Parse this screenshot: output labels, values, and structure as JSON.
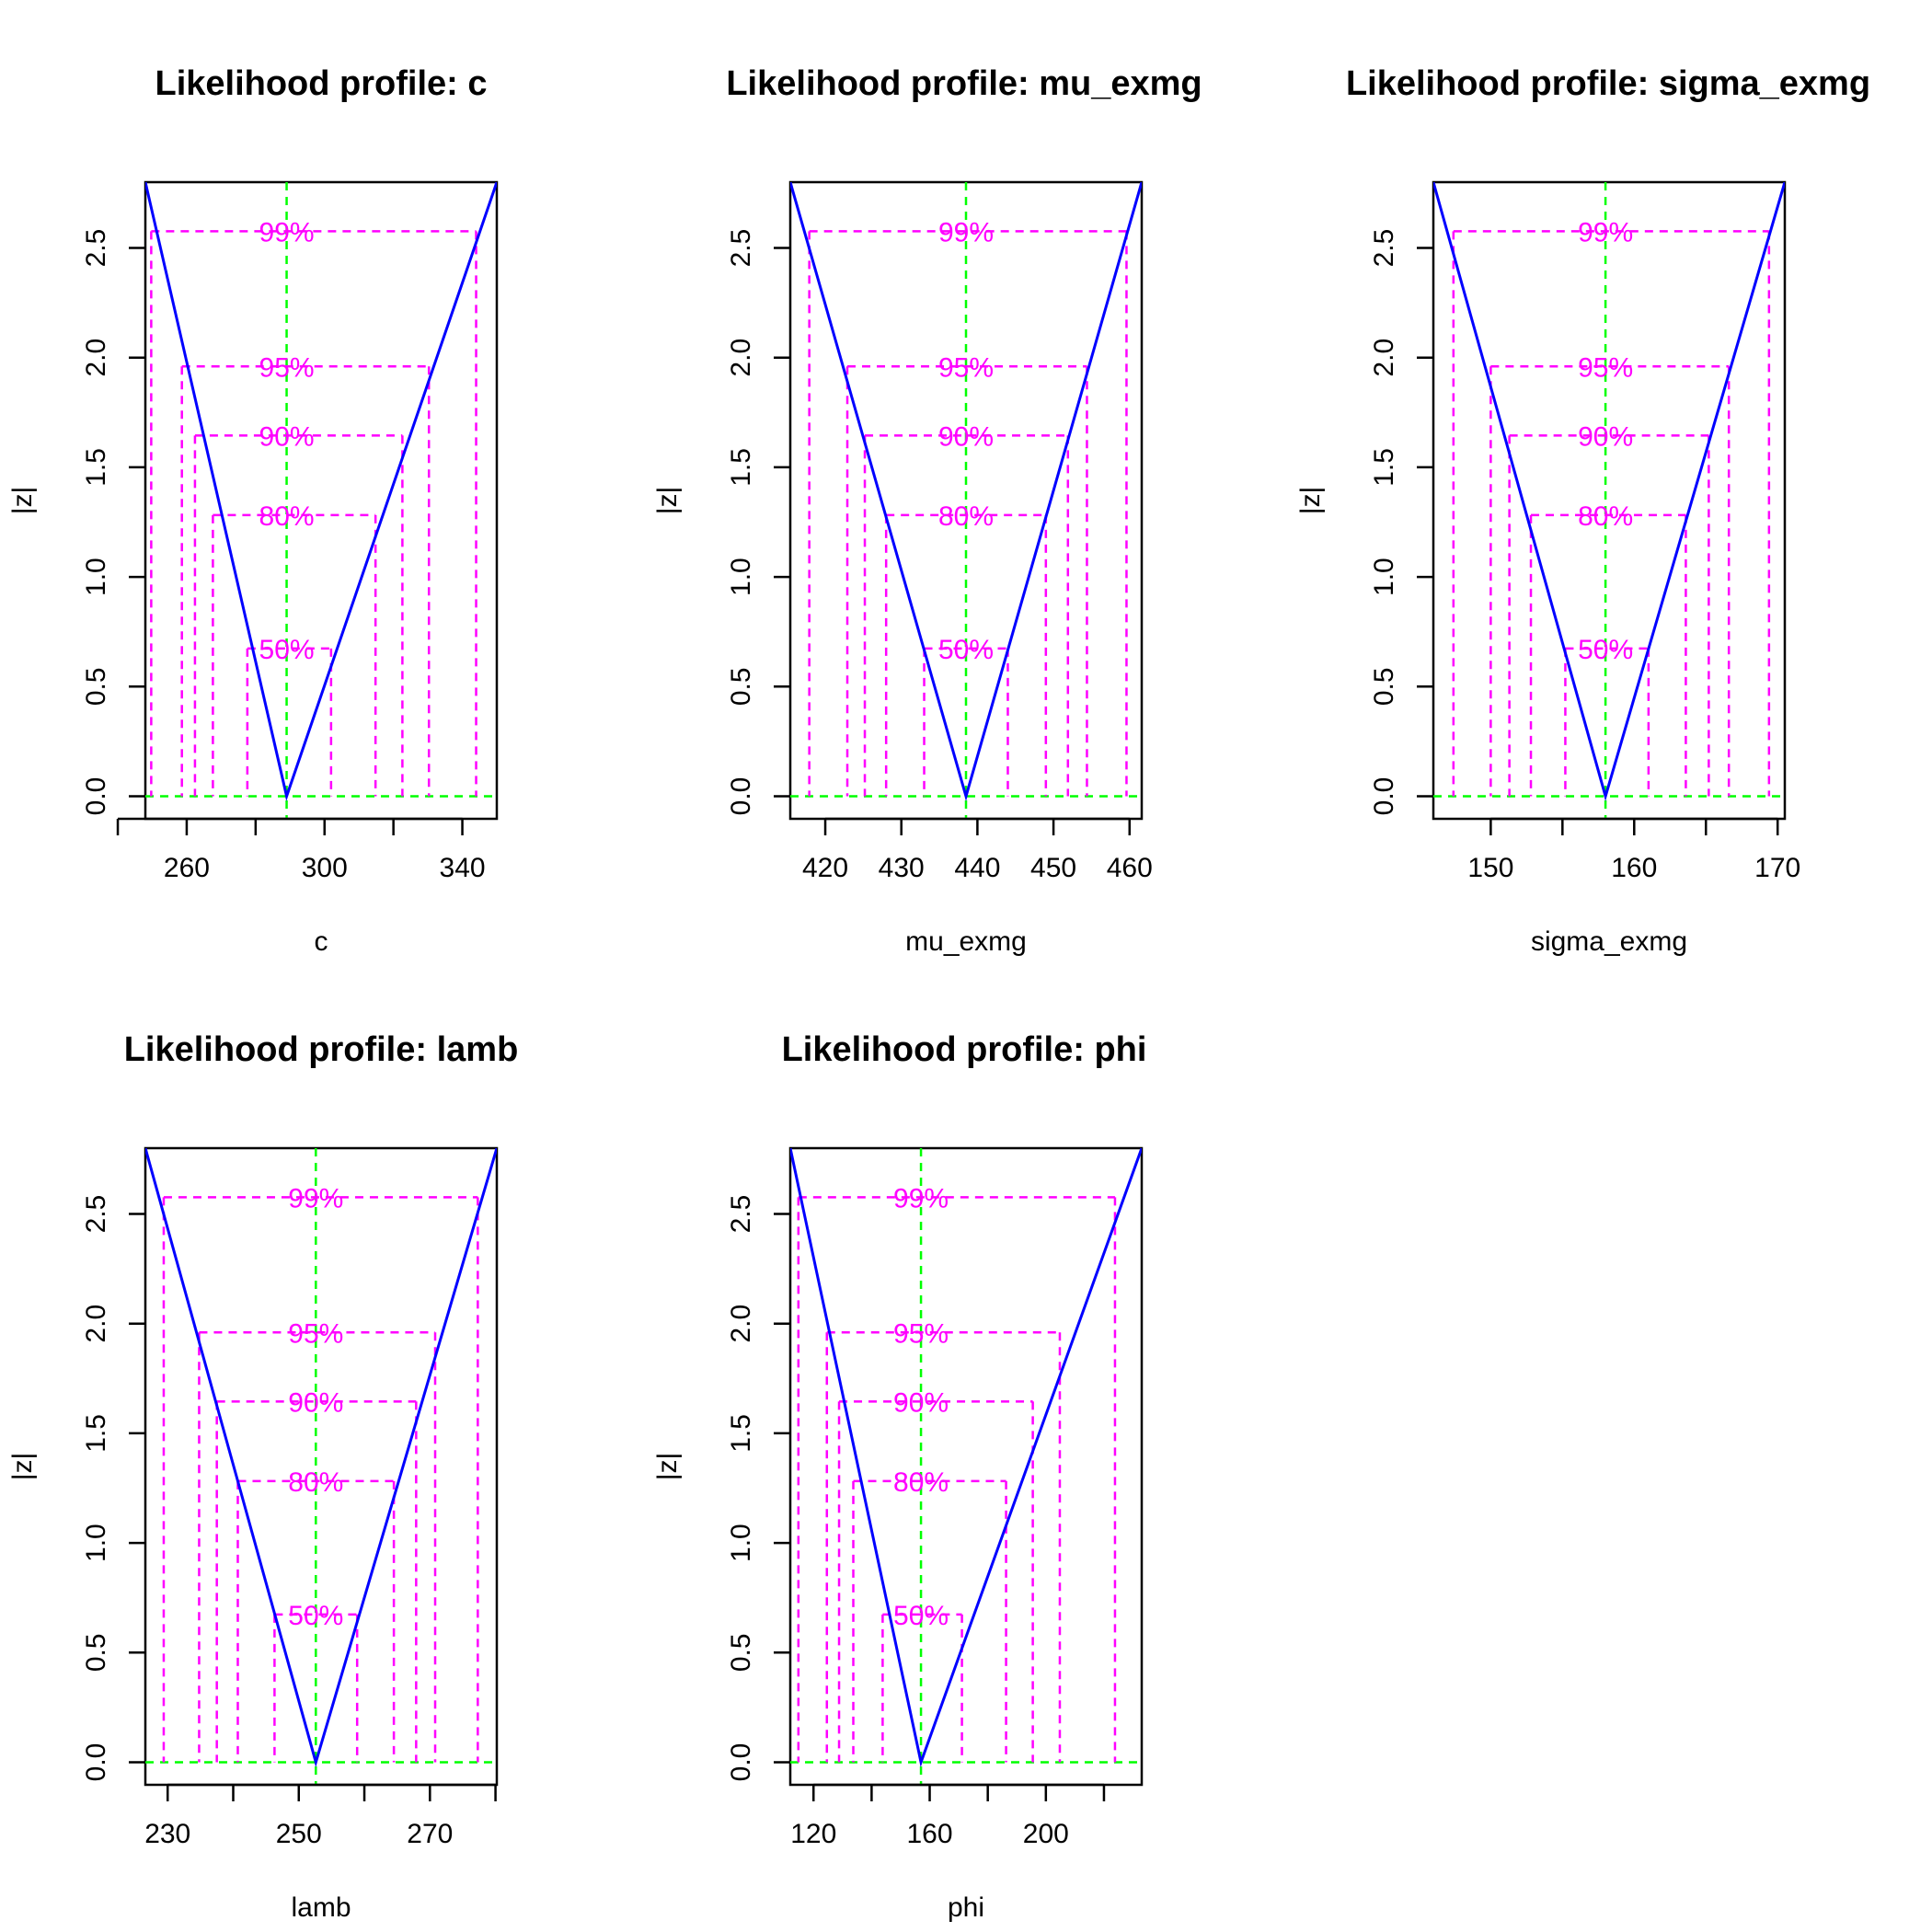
{
  "colors": {
    "profile": "#0000ff",
    "ci": "#ff00ff",
    "mle": "#00ff00",
    "axis": "#000000"
  },
  "chart_data": [
    {
      "type": "line",
      "title": "Likelihood profile: c",
      "xlabel": "c",
      "ylabel": "|z|",
      "xlim": [
        248,
        350
      ],
      "ylim": [
        0,
        2.8
      ],
      "xticks": [
        260,
        300,
        340
      ],
      "xtick_marks": [
        240,
        260,
        280,
        300,
        320,
        340
      ],
      "yticks": [
        0.0,
        0.5,
        1.0,
        1.5,
        2.0,
        2.5
      ],
      "mle": 289,
      "levels": [
        {
          "label": "50%",
          "z": 0.674,
          "lower": 277.6,
          "upper": 301.9
        },
        {
          "label": "80%",
          "z": 1.282,
          "lower": 267.6,
          "upper": 314.8
        },
        {
          "label": "90%",
          "z": 1.645,
          "lower": 262.4,
          "upper": 322.6
        },
        {
          "label": "95%",
          "z": 1.96,
          "lower": 258.6,
          "upper": 330.3
        },
        {
          "label": "99%",
          "z": 2.576,
          "lower": 249.7,
          "upper": 344.0
        }
      ],
      "profile": {
        "x": [
          248,
          289,
          350
        ],
        "y": [
          2.8,
          0.0,
          2.8
        ]
      }
    },
    {
      "type": "line",
      "title": "Likelihood profile: mu_exmg",
      "xlabel": "mu_exmg",
      "ylabel": "|z|",
      "xlim": [
        415.4,
        461.6
      ],
      "ylim": [
        0,
        2.8
      ],
      "xticks": [
        420,
        430,
        440,
        450,
        460
      ],
      "xtick_marks": [
        420,
        430,
        440,
        450,
        460
      ],
      "yticks": [
        0.0,
        0.5,
        1.0,
        1.5,
        2.0,
        2.5
      ],
      "mle": 438.5,
      "levels": [
        {
          "label": "50%",
          "z": 0.674,
          "lower": 433.0,
          "upper": 444.0
        },
        {
          "label": "80%",
          "z": 1.282,
          "lower": 428.0,
          "upper": 449.0
        },
        {
          "label": "90%",
          "z": 1.645,
          "lower": 425.2,
          "upper": 451.9
        },
        {
          "label": "95%",
          "z": 1.96,
          "lower": 422.9,
          "upper": 454.4
        },
        {
          "label": "99%",
          "z": 2.576,
          "lower": 417.9,
          "upper": 459.6
        }
      ],
      "profile": {
        "x": [
          415.4,
          438.5,
          461.6
        ],
        "y": [
          2.8,
          0.0,
          2.8
        ]
      }
    },
    {
      "type": "line",
      "title": "Likelihood profile: sigma_exmg",
      "xlabel": "sigma_exmg",
      "ylabel": "|z|",
      "xlim": [
        146.0,
        170.5
      ],
      "ylim": [
        0,
        2.8
      ],
      "xticks": [
        150,
        160,
        170
      ],
      "xtick_marks": [
        150,
        155,
        160,
        165,
        170
      ],
      "yticks": [
        0.0,
        0.5,
        1.0,
        1.5,
        2.0,
        2.5
      ],
      "mle": 158.0,
      "levels": [
        {
          "label": "50%",
          "z": 0.674,
          "lower": 155.2,
          "upper": 161.0
        },
        {
          "label": "80%",
          "z": 1.282,
          "lower": 152.8,
          "upper": 163.6
        },
        {
          "label": "90%",
          "z": 1.645,
          "lower": 151.3,
          "upper": 165.2
        },
        {
          "label": "95%",
          "z": 1.96,
          "lower": 150.0,
          "upper": 166.6
        },
        {
          "label": "99%",
          "z": 2.576,
          "lower": 147.4,
          "upper": 169.4
        }
      ],
      "profile": {
        "x": [
          146.0,
          158.0,
          170.5
        ],
        "y": [
          2.8,
          0.0,
          2.8
        ]
      }
    },
    {
      "type": "line",
      "title": "Likelihood profile: lamb",
      "xlabel": "lamb",
      "ylabel": "|z|",
      "xlim": [
        226.6,
        280.2
      ],
      "ylim": [
        0,
        2.8
      ],
      "xticks": [
        230,
        250,
        270
      ],
      "xtick_marks": [
        230,
        240,
        250,
        260,
        270,
        280
      ],
      "yticks": [
        0.0,
        0.5,
        1.0,
        1.5,
        2.0,
        2.5
      ],
      "mle": 252.6,
      "levels": [
        {
          "label": "50%",
          "z": 0.674,
          "lower": 246.3,
          "upper": 258.9
        },
        {
          "label": "80%",
          "z": 1.282,
          "lower": 240.7,
          "upper": 264.5
        },
        {
          "label": "90%",
          "z": 1.645,
          "lower": 237.5,
          "upper": 267.9
        },
        {
          "label": "95%",
          "z": 1.96,
          "lower": 234.8,
          "upper": 270.8
        },
        {
          "label": "99%",
          "z": 2.576,
          "lower": 229.4,
          "upper": 277.3
        }
      ],
      "profile": {
        "x": [
          226.6,
          252.6,
          280.2
        ],
        "y": [
          2.8,
          0.0,
          2.8
        ]
      }
    },
    {
      "type": "line",
      "title": "Likelihood profile: phi",
      "xlabel": "phi",
      "ylabel": "|z|",
      "xlim": [
        112,
        233
      ],
      "ylim": [
        0,
        2.8
      ],
      "xticks": [
        120,
        160,
        200
      ],
      "xtick_marks": [
        120,
        140,
        160,
        180,
        200,
        220
      ],
      "yticks": [
        0.0,
        0.5,
        1.0,
        1.5,
        2.0,
        2.5
      ],
      "mle": 157,
      "levels": [
        {
          "label": "50%",
          "z": 0.674,
          "lower": 143.8,
          "upper": 171.1
        },
        {
          "label": "80%",
          "z": 1.282,
          "lower": 133.7,
          "upper": 186.3
        },
        {
          "label": "90%",
          "z": 1.645,
          "lower": 128.8,
          "upper": 195.5
        },
        {
          "label": "95%",
          "z": 1.96,
          "lower": 124.6,
          "upper": 204.8
        },
        {
          "label": "99%",
          "z": 2.576,
          "lower": 114.8,
          "upper": 223.8
        }
      ],
      "profile": {
        "x": [
          112,
          157,
          233
        ],
        "y": [
          2.8,
          0.0,
          2.8
        ]
      }
    }
  ]
}
